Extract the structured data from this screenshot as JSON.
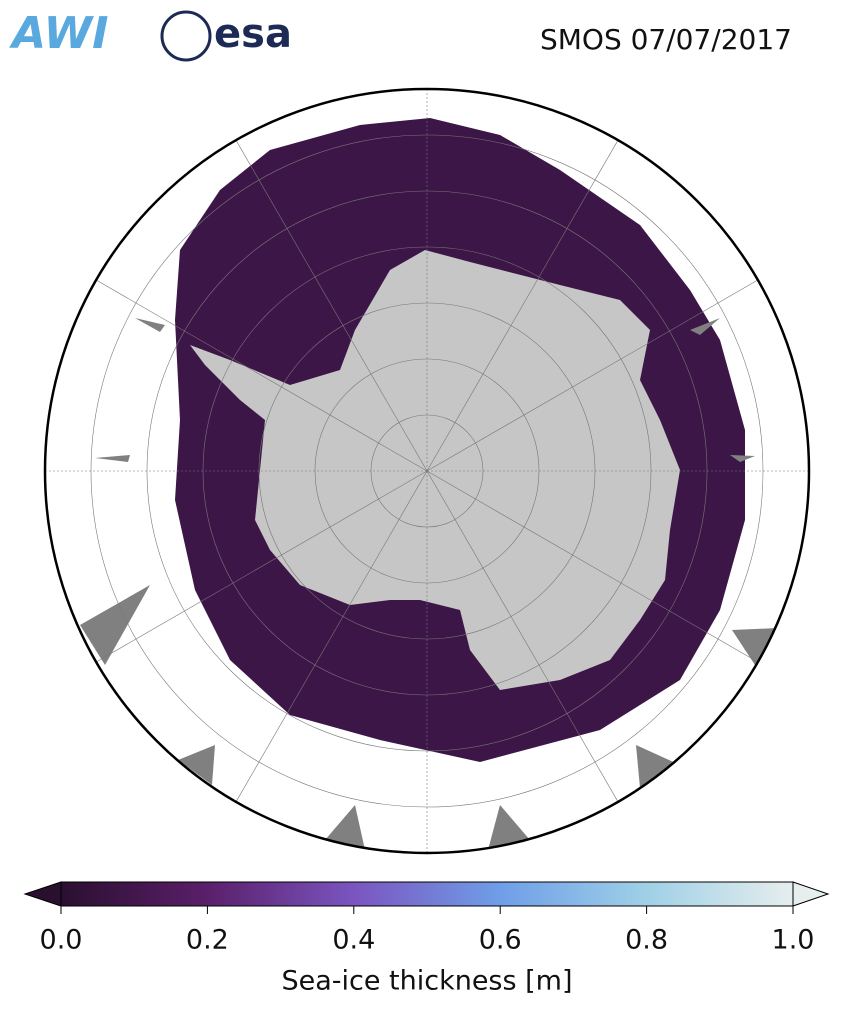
{
  "header": {
    "logos": [
      "AWI",
      "esa"
    ],
    "title": "SMOS 07/07/2017"
  },
  "colorbar": {
    "label": "Sea-ice thickness [m]",
    "lim": [
      0,
      1
    ],
    "ticks": [
      {
        "value": 0,
        "label": "0.0"
      },
      {
        "value": 0.2,
        "label": "0.2"
      },
      {
        "value": 0.4,
        "label": "0.4"
      },
      {
        "value": 0.6,
        "label": "0.6"
      },
      {
        "value": 0.8,
        "label": "0.8"
      },
      {
        "value": 1,
        "label": "1.0"
      }
    ],
    "colors": [
      "#2a0f2f",
      "#5a1f6a",
      "#7a55c0",
      "#6f9ee8",
      "#9fd0e6",
      "#e6eeee"
    ]
  }
}
